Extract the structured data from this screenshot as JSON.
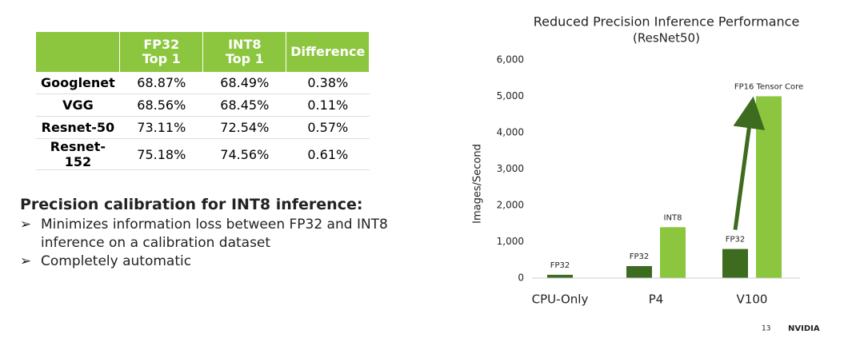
{
  "table": {
    "header": [
      "FP32\nTop 1",
      "INT8\nTop 1",
      "Difference"
    ],
    "rows": [
      [
        "Googlenet",
        "68.87%",
        "68.49%",
        "0.38%"
      ],
      [
        "VGG",
        "68.56%",
        "68.45%",
        "0.11%"
      ],
      [
        "Resnet-50",
        "73.11%",
        "72.54%",
        "0.57%"
      ],
      [
        "Resnet-152",
        "75.18%",
        "74.56%",
        "0.61%"
      ]
    ]
  },
  "text": {
    "heading": "Precision calibration for INT8 inference:",
    "bullets": [
      "Minimizes information loss between FP32 and INT8 inference on a calibration dataset",
      "Completely automatic"
    ]
  },
  "chart_data": {
    "type": "bar",
    "title": "Reduced Precision Inference Performance",
    "subtitle": "(ResNet50)",
    "y_label": "Images/Second",
    "categories": [
      "CPU-Only",
      "P4",
      "V100"
    ],
    "series": [
      {
        "name": "FP32",
        "color": "#3d6b1f",
        "values": [
          90,
          330,
          800
        ]
      },
      {
        "name": "INT8",
        "color": "#8cc63f",
        "values": [
          null,
          1400,
          null
        ]
      },
      {
        "name": "FP16 Tensor Core",
        "color": "#8cc63f",
        "values": [
          null,
          null,
          5000
        ]
      }
    ],
    "ylim": [
      0,
      6000
    ],
    "yticks": [
      0,
      {
        "value": 1000,
        "label": "1,000"
      },
      {
        "value": 2000,
        "label": "2,000"
      },
      {
        "value": 3000,
        "label": "3,000"
      },
      {
        "value": 4000,
        "label": "4,000"
      },
      {
        "value": 5000,
        "label": "5,000"
      },
      {
        "value": 6000,
        "label": "6,000"
      }
    ],
    "grid": false
  },
  "footer": {
    "page": "13",
    "brand": "NVIDIA"
  }
}
